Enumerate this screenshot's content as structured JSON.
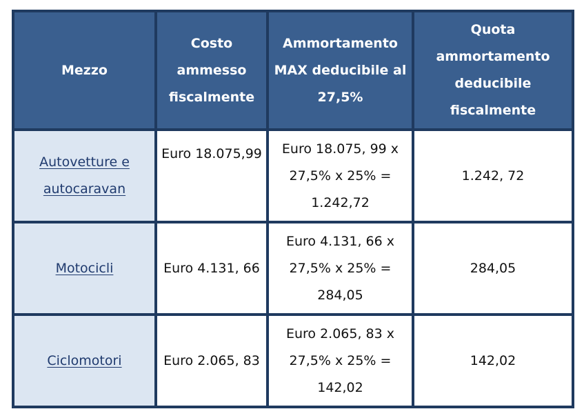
{
  "table": {
    "headers": {
      "mezzo": "Mezzo",
      "costo": [
        "Costo",
        "ammesso",
        "fiscalmente"
      ],
      "ammortamento": [
        "Ammortamento",
        "MAX deducibile al",
        "27,5%"
      ],
      "quota": [
        "Quota",
        "ammortamento",
        "deducibile",
        "fiscalmente"
      ]
    },
    "rows": [
      {
        "mezzo": [
          "Autovetture e",
          "autocaravan"
        ],
        "costo": "Euro 18.075,99",
        "ammortamento": [
          "Euro 18.075, 99 x",
          "27,5% x 25% =",
          "1.242,72"
        ],
        "quota": "1.242, 72"
      },
      {
        "mezzo": [
          "Motocicli"
        ],
        "costo": "Euro 4.131, 66",
        "ammortamento": [
          "Euro 4.131, 66 x",
          "27,5% x 25% =",
          "284,05"
        ],
        "quota": "284,05"
      },
      {
        "mezzo": [
          "Ciclomotori"
        ],
        "costo": "Euro 2.065, 83",
        "ammortamento": [
          "Euro 2.065, 83 x",
          "27,5% x 25% =",
          "142,02"
        ],
        "quota": "142,02"
      }
    ],
    "colors": {
      "border": "#1f3a5f",
      "header_bg": "#3a5f8f",
      "first_col_bg": "#dce6f2",
      "link": "#1f3a6e"
    }
  }
}
